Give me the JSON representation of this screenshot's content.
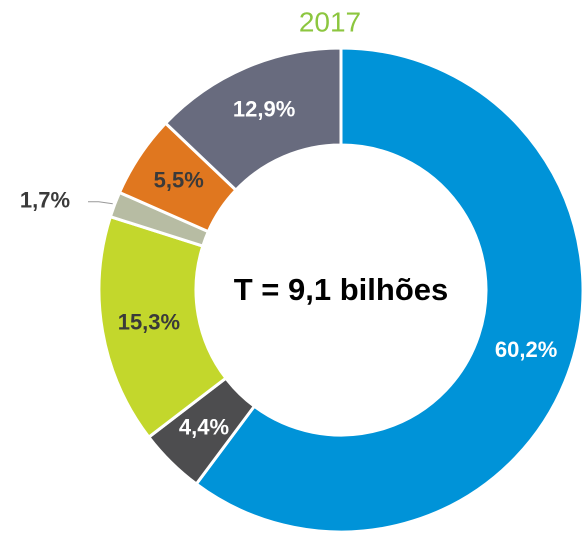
{
  "chart_data": {
    "type": "donut",
    "title": "2017",
    "center_text": "T = 9,1 bilhões",
    "categories": [
      null,
      null,
      null,
      null,
      null,
      null
    ],
    "values": [
      60.2,
      4.4,
      15.3,
      1.7,
      5.5,
      12.9
    ],
    "value_labels": [
      "60,2%",
      "4,4%",
      "15,3%",
      "1,7%",
      "5,5%",
      "12,9%"
    ],
    "colors": [
      "#0093d8",
      "#4d4d4f",
      "#c3d72c",
      "#b7bca3",
      "#e0771f",
      "#686b7e"
    ],
    "title_color": "#8cc63f"
  }
}
